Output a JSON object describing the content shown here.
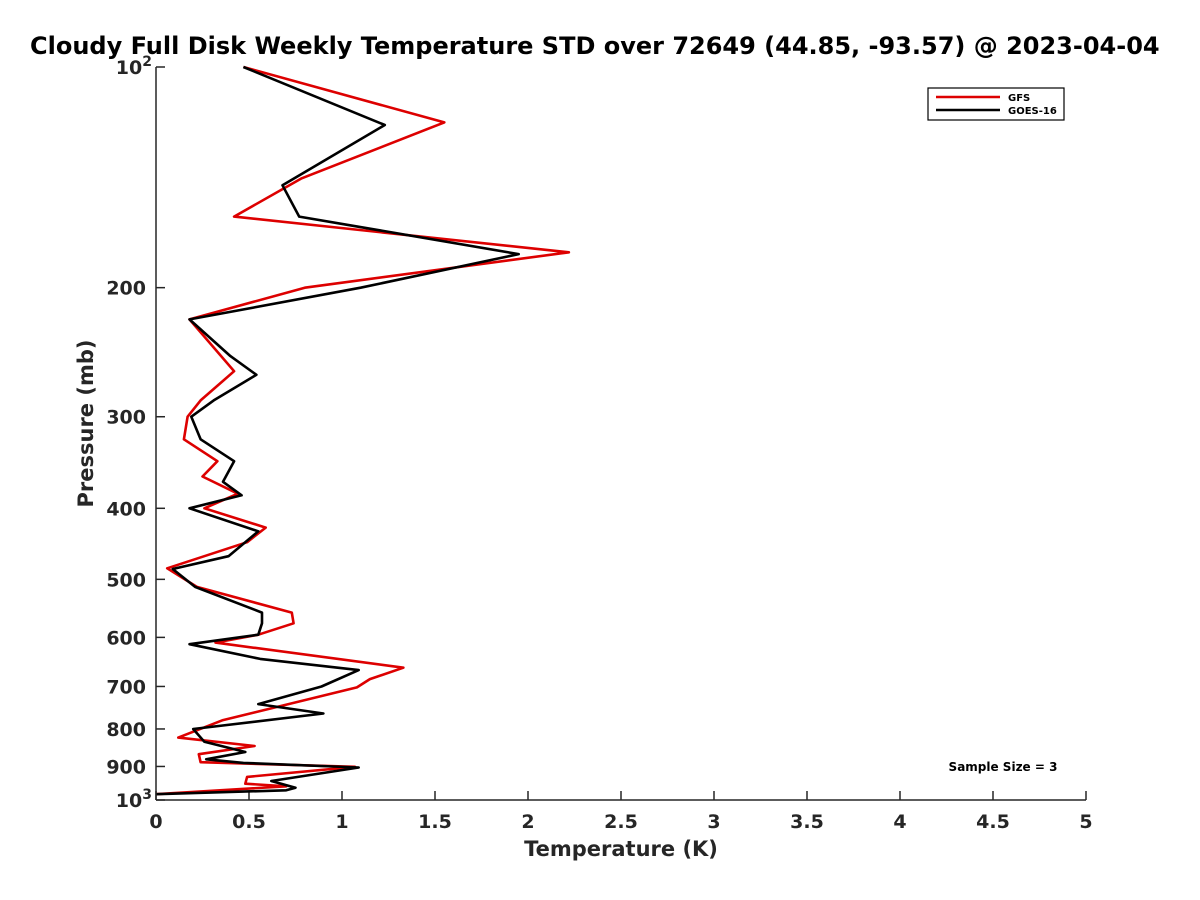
{
  "chart_data": {
    "type": "line",
    "title": "Cloudy Full Disk Weekly Temperature STD over 72649 (44.85, -93.57) @ 2023-04-04",
    "xlabel": "Temperature (K)",
    "ylabel": "Pressure (mb)",
    "xlim": [
      0,
      5
    ],
    "ylim": [
      1000,
      100
    ],
    "y_scale": "log",
    "y_reversed": true,
    "x_ticks": [
      {
        "value": 0,
        "label": "0"
      },
      {
        "value": 0.5,
        "label": "0.5"
      },
      {
        "value": 1,
        "label": "1"
      },
      {
        "value": 1.5,
        "label": "1.5"
      },
      {
        "value": 2,
        "label": "2"
      },
      {
        "value": 2.5,
        "label": "2.5"
      },
      {
        "value": 3,
        "label": "3"
      },
      {
        "value": 3.5,
        "label": "3.5"
      },
      {
        "value": 4,
        "label": "4"
      },
      {
        "value": 4.5,
        "label": "4.5"
      },
      {
        "value": 5,
        "label": "5"
      }
    ],
    "y_ticks": [
      {
        "value": 100,
        "base": "10",
        "exp": "2"
      },
      {
        "value": 200,
        "base": "200",
        "exp": ""
      },
      {
        "value": 300,
        "base": "300",
        "exp": ""
      },
      {
        "value": 400,
        "base": "400",
        "exp": ""
      },
      {
        "value": 500,
        "base": "500",
        "exp": ""
      },
      {
        "value": 600,
        "base": "600",
        "exp": ""
      },
      {
        "value": 700,
        "base": "700",
        "exp": ""
      },
      {
        "value": 800,
        "base": "800",
        "exp": ""
      },
      {
        "value": 900,
        "base": "900",
        "exp": ""
      },
      {
        "value": 1000,
        "base": "10",
        "exp": "3"
      }
    ],
    "grid": false,
    "legend_position": "top-right",
    "annotation": "Sample Size = 3",
    "series": [
      {
        "name": "GFS",
        "color": "#dd0000",
        "points": [
          {
            "x": 0.47,
            "p": 100
          },
          {
            "x": 1.55,
            "p": 119
          },
          {
            "x": 0.78,
            "p": 142
          },
          {
            "x": 0.42,
            "p": 160
          },
          {
            "x": 2.22,
            "p": 179
          },
          {
            "x": 0.8,
            "p": 200
          },
          {
            "x": 0.18,
            "p": 221
          },
          {
            "x": 0.42,
            "p": 260
          },
          {
            "x": 0.24,
            "p": 285
          },
          {
            "x": 0.17,
            "p": 300
          },
          {
            "x": 0.15,
            "p": 322
          },
          {
            "x": 0.33,
            "p": 345
          },
          {
            "x": 0.25,
            "p": 362
          },
          {
            "x": 0.44,
            "p": 382
          },
          {
            "x": 0.26,
            "p": 400
          },
          {
            "x": 0.59,
            "p": 425
          },
          {
            "x": 0.49,
            "p": 445
          },
          {
            "x": 0.06,
            "p": 483
          },
          {
            "x": 0.22,
            "p": 512
          },
          {
            "x": 0.73,
            "p": 555
          },
          {
            "x": 0.74,
            "p": 574
          },
          {
            "x": 0.55,
            "p": 595
          },
          {
            "x": 0.32,
            "p": 610
          },
          {
            "x": 1.33,
            "p": 660
          },
          {
            "x": 1.15,
            "p": 684
          },
          {
            "x": 1.08,
            "p": 702
          },
          {
            "x": 0.36,
            "p": 778
          },
          {
            "x": 0.12,
            "p": 822
          },
          {
            "x": 0.53,
            "p": 844
          },
          {
            "x": 0.23,
            "p": 866
          },
          {
            "x": 0.24,
            "p": 888
          },
          {
            "x": 1.07,
            "p": 901
          },
          {
            "x": 0.49,
            "p": 930
          },
          {
            "x": 0.48,
            "p": 950
          },
          {
            "x": 0.7,
            "p": 958
          },
          {
            "x": 0.0,
            "p": 982
          }
        ]
      },
      {
        "name": "GOES-16",
        "color": "#000000",
        "points": [
          {
            "x": 0.47,
            "p": 100
          },
          {
            "x": 1.23,
            "p": 120
          },
          {
            "x": 0.68,
            "p": 145
          },
          {
            "x": 0.77,
            "p": 160
          },
          {
            "x": 1.95,
            "p": 180
          },
          {
            "x": 1.1,
            "p": 200
          },
          {
            "x": 0.18,
            "p": 221
          },
          {
            "x": 0.4,
            "p": 248
          },
          {
            "x": 0.54,
            "p": 263
          },
          {
            "x": 0.31,
            "p": 285
          },
          {
            "x": 0.19,
            "p": 300
          },
          {
            "x": 0.24,
            "p": 322
          },
          {
            "x": 0.42,
            "p": 345
          },
          {
            "x": 0.36,
            "p": 368
          },
          {
            "x": 0.46,
            "p": 384
          },
          {
            "x": 0.18,
            "p": 400
          },
          {
            "x": 0.55,
            "p": 430
          },
          {
            "x": 0.39,
            "p": 465
          },
          {
            "x": 0.09,
            "p": 484
          },
          {
            "x": 0.21,
            "p": 512
          },
          {
            "x": 0.57,
            "p": 555
          },
          {
            "x": 0.57,
            "p": 574
          },
          {
            "x": 0.55,
            "p": 595
          },
          {
            "x": 0.18,
            "p": 613
          },
          {
            "x": 0.56,
            "p": 642
          },
          {
            "x": 1.09,
            "p": 665
          },
          {
            "x": 0.89,
            "p": 700
          },
          {
            "x": 0.55,
            "p": 740
          },
          {
            "x": 0.9,
            "p": 762
          },
          {
            "x": 0.2,
            "p": 800
          },
          {
            "x": 0.26,
            "p": 833
          },
          {
            "x": 0.48,
            "p": 860
          },
          {
            "x": 0.27,
            "p": 880
          },
          {
            "x": 0.47,
            "p": 890
          },
          {
            "x": 1.09,
            "p": 903
          },
          {
            "x": 0.62,
            "p": 942
          },
          {
            "x": 0.75,
            "p": 962
          },
          {
            "x": 0.7,
            "p": 970
          },
          {
            "x": 0.0,
            "p": 982
          }
        ]
      }
    ]
  }
}
